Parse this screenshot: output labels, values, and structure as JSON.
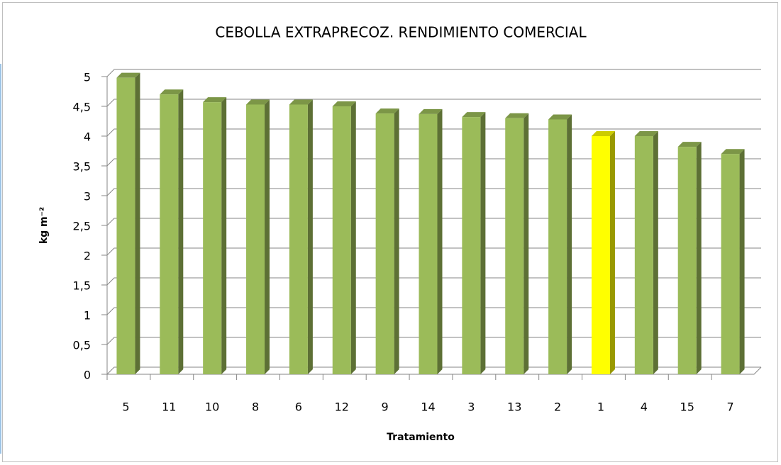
{
  "chart_data": {
    "type": "bar3d",
    "title": "CEBOLLA EXTRAPRECOZ. RENDIMIENTO COMERCIAL",
    "xlabel": "Tratamiento",
    "ylabel": "kg m⁻²",
    "categories": [
      "5",
      "11",
      "10",
      "8",
      "6",
      "12",
      "9",
      "14",
      "3",
      "13",
      "2",
      "1",
      "4",
      "15",
      "7"
    ],
    "values": [
      4.98,
      4.7,
      4.57,
      4.53,
      4.53,
      4.5,
      4.38,
      4.37,
      4.32,
      4.3,
      4.28,
      4.0,
      4.0,
      3.82,
      3.7
    ],
    "colors": [
      "#9bbb59",
      "#9bbb59",
      "#9bbb59",
      "#9bbb59",
      "#9bbb59",
      "#9bbb59",
      "#9bbb59",
      "#9bbb59",
      "#9bbb59",
      "#9bbb59",
      "#9bbb59",
      "#ffff00",
      "#9bbb59",
      "#9bbb59",
      "#9bbb59"
    ],
    "ylim": [
      0,
      5
    ],
    "yticks": [
      0,
      {
        "value": 0.5,
        "label": "0,5"
      },
      1,
      {
        "value": 1.5,
        "label": "1,5"
      },
      2,
      {
        "value": 2.5,
        "label": "2,5"
      },
      3,
      {
        "value": 3.5,
        "label": "3,5"
      },
      4,
      {
        "value": 4.5,
        "label": "4,5"
      },
      5
    ],
    "grid": true
  }
}
